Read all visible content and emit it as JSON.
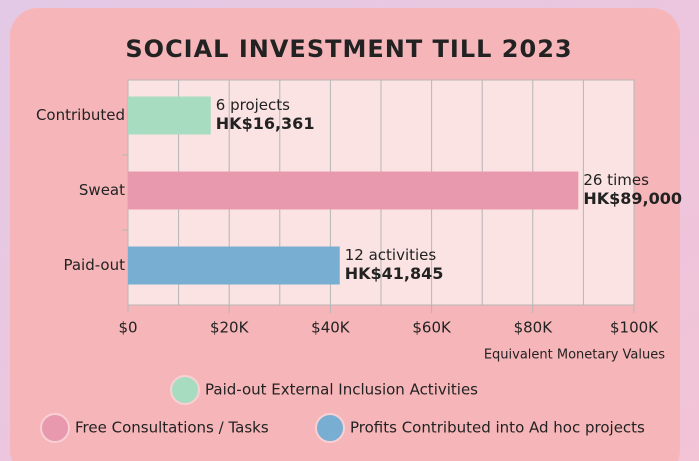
{
  "chart_data": {
    "type": "bar",
    "orientation": "horizontal",
    "title": "SOCIAL INVESTMENT TILL 2023",
    "x_label": "Equivalent Monetary Values",
    "categories": [
      "Contributed",
      "Sweat",
      "Paid-out"
    ],
    "values": [
      16361,
      89000,
      41845
    ],
    "value_labels": [
      "HK$16,361",
      "HK$89,000",
      "HK$41,845"
    ],
    "annotations": [
      "6 projects",
      "26 times",
      "12 activities"
    ],
    "colors": [
      "#a8dcc0",
      "#e899ae",
      "#78aed2"
    ],
    "xlim": [
      0,
      100000
    ],
    "xticks": [
      {
        "value": 0,
        "label": "$0"
      },
      {
        "value": 20000,
        "label": "$20K"
      },
      {
        "value": 40000,
        "label": "$40K"
      },
      {
        "value": 60000,
        "label": "$60K"
      },
      {
        "value": 80000,
        "label": "$80K"
      },
      {
        "value": 100000,
        "label": "$100K"
      }
    ],
    "minor_xticks": [
      10000,
      30000,
      50000,
      70000,
      90000
    ],
    "grid": true,
    "legend": [
      {
        "name": "Paid-out External Inclusion Activities",
        "color": "#a8dcc0"
      },
      {
        "name": "Free Consultations / Tasks",
        "color": "#e899ae"
      },
      {
        "name": "Profits Contributed into Ad hoc projects",
        "color": "#78aed2"
      }
    ]
  }
}
